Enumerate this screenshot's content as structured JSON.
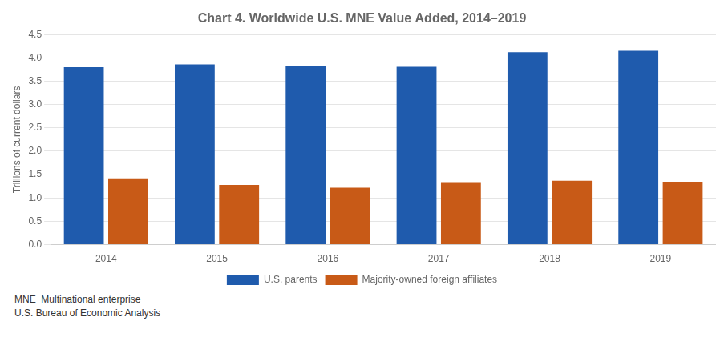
{
  "chart_data": {
    "type": "bar",
    "title": "Chart 4. Worldwide U.S. MNE Value Added, 2014–2019",
    "ylabel": "Trillions of current dollars",
    "categories": [
      "2014",
      "2015",
      "2016",
      "2017",
      "2018",
      "2019"
    ],
    "series": [
      {
        "name": "U.S. parents",
        "color": "#1F5BAD",
        "values": [
          3.8,
          3.86,
          3.83,
          3.81,
          4.12,
          4.15
        ]
      },
      {
        "name": "Majority-owned foreign affiliates",
        "color": "#C85A17",
        "values": [
          1.42,
          1.28,
          1.22,
          1.34,
          1.37,
          1.35
        ]
      }
    ],
    "ylim": [
      0,
      4.5
    ],
    "yticks": [
      {
        "value": 0,
        "label": "0.0"
      },
      0.5,
      {
        "value": 1,
        "label": "1.0"
      },
      1.5,
      {
        "value": 2,
        "label": "2.0"
      },
      2.5,
      {
        "value": 3,
        "label": "3.0"
      },
      3.5,
      {
        "value": 4,
        "label": "4.0"
      },
      4.5
    ],
    "grid": true,
    "legend": "bottom",
    "annotations": [
      "MNE  Multinational enterprise",
      "U.S. Bureau of Economic Analysis"
    ]
  }
}
